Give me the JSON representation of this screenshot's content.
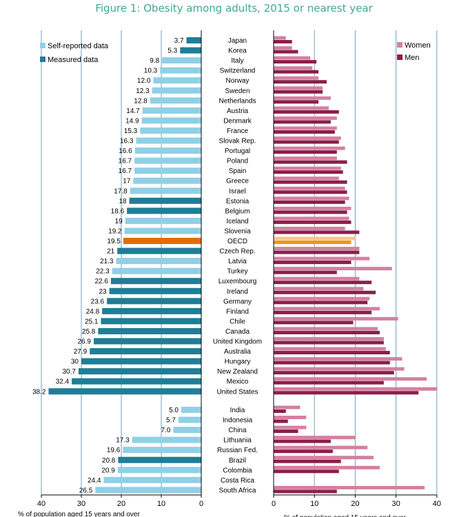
{
  "chart_data": {
    "type": "bar",
    "title": "Figure 1: Obesity among adults, 2015 or nearest year",
    "colors": {
      "self_reported": "#8fd0e6",
      "measured": "#1f7e96",
      "oecd_total": "#e36c0a",
      "women": "#d4809e",
      "men": "#8b1e4a",
      "oecd_women": "#f2c98e",
      "oecd_men": "#f0950f"
    },
    "left_panel": {
      "xlabel": "% of population aged 15 years and over",
      "xlim": [
        40,
        0
      ],
      "ticks": [
        40,
        30,
        20,
        10,
        0
      ],
      "legend": [
        {
          "name": "Self-reported data",
          "color_key": "self_reported"
        },
        {
          "name": "Measured data",
          "color_key": "measured"
        }
      ]
    },
    "right_panel": {
      "xlabel": "% of population aged 15 years and over",
      "xlim": [
        0,
        40
      ],
      "ticks": [
        0,
        10,
        20,
        30,
        40
      ],
      "legend": [
        {
          "name": "Women",
          "color_key": "women"
        },
        {
          "name": "Men",
          "color_key": "men"
        }
      ]
    },
    "groups": [
      {
        "countries": [
          {
            "name": "Japan",
            "total": "3.7",
            "type": "measured",
            "women": 3.0,
            "men": 4.5
          },
          {
            "name": "Korea",
            "total": "5.3",
            "type": "measured",
            "women": 4.5,
            "men": 6.0
          },
          {
            "name": "Italy",
            "total": "9.8",
            "type": "self",
            "women": 9.0,
            "men": 10.5
          },
          {
            "name": "Switzerland",
            "total": "10.3",
            "type": "self",
            "women": 9.5,
            "men": 11.0
          },
          {
            "name": "Norway",
            "total": "12.0",
            "type": "self",
            "women": 11.0,
            "men": 13.0
          },
          {
            "name": "Sweden",
            "total": "12.3",
            "type": "self",
            "women": 12.0,
            "men": 12.0
          },
          {
            "name": "Netherlands",
            "total": "12.8",
            "type": "self",
            "women": 14.0,
            "men": 11.0
          },
          {
            "name": "Austria",
            "total": "14.7",
            "type": "self",
            "women": 13.5,
            "men": 16.0
          },
          {
            "name": "Denmark",
            "total": "14.9",
            "type": "self",
            "women": 15.5,
            "men": 14.0
          },
          {
            "name": "France",
            "total": "15.3",
            "type": "self",
            "women": 15.5,
            "men": 15.0
          },
          {
            "name": "Slovak Rep.",
            "total": "16.3",
            "type": "self",
            "women": 16.5,
            "men": 16.0
          },
          {
            "name": "Portugal",
            "total": "16.6",
            "type": "self",
            "women": 17.5,
            "men": 15.5
          },
          {
            "name": "Poland",
            "total": "16.7",
            "type": "self",
            "women": 15.5,
            "men": 18.0
          },
          {
            "name": "Spain",
            "total": "16.7",
            "type": "self",
            "women": 16.5,
            "men": 17.0
          },
          {
            "name": "Greece",
            "total": "17",
            "type": "self",
            "women": 16.0,
            "men": 18.0
          },
          {
            "name": "Israel",
            "total": "17.8",
            "type": "self",
            "women": 17.5,
            "men": 18.0
          },
          {
            "name": "Estonia",
            "total": "18",
            "type": "measured",
            "women": 18.5,
            "men": 17.5
          },
          {
            "name": "Belgium",
            "total": "18.6",
            "type": "measured",
            "women": 19.0,
            "men": 18.0
          },
          {
            "name": "Iceland",
            "total": "19",
            "type": "self",
            "women": 18.5,
            "men": 19.0
          },
          {
            "name": "Slovenia",
            "total": "19.2",
            "type": "self",
            "women": 17.5,
            "men": 21.0
          },
          {
            "name": "OECD",
            "total": "19.5",
            "type": "oecd",
            "women": 20.0,
            "men": 19.0
          },
          {
            "name": "Czech Rep.",
            "total": "21",
            "type": "measured",
            "women": 21.0,
            "men": 21.0
          },
          {
            "name": "Latvia",
            "total": "21.3",
            "type": "self",
            "women": 23.5,
            "men": 19.0
          },
          {
            "name": "Turkey",
            "total": "22.3",
            "type": "self",
            "women": 29.0,
            "men": 15.5
          },
          {
            "name": "Luxembourg",
            "total": "22.6",
            "type": "measured",
            "women": 21.0,
            "men": 24.0
          },
          {
            "name": "Ireland",
            "total": "23",
            "type": "measured",
            "women": 22.0,
            "men": 25.0
          },
          {
            "name": "Germany",
            "total": "23.6",
            "type": "measured",
            "women": 23.5,
            "men": 23.0
          },
          {
            "name": "Finland",
            "total": "24.8",
            "type": "measured",
            "women": 26.0,
            "men": 24.0
          },
          {
            "name": "Chile",
            "total": "25.1",
            "type": "measured",
            "women": 30.5,
            "men": 19.5
          },
          {
            "name": "Canada",
            "total": "25.8",
            "type": "measured",
            "women": 25.5,
            "men": 26.0
          },
          {
            "name": "United Kingdom",
            "total": "26.9",
            "type": "measured",
            "women": 27.0,
            "men": 27.0
          },
          {
            "name": "Australia",
            "total": "27.9",
            "type": "measured",
            "women": 27.5,
            "men": 28.5
          },
          {
            "name": "Hungary",
            "total": "30",
            "type": "measured",
            "women": 31.5,
            "men": 28.5
          },
          {
            "name": "New Zealand",
            "total": "30.7",
            "type": "measured",
            "women": 32.0,
            "men": 29.5
          },
          {
            "name": "Mexico",
            "total": "32.4",
            "type": "measured",
            "women": 37.5,
            "men": 27.0
          },
          {
            "name": "United States",
            "total": "38.2",
            "type": "measured",
            "women": 40.0,
            "men": 35.5
          }
        ]
      },
      {
        "countries": [
          {
            "name": "India",
            "total": "5.0",
            "type": "self",
            "women": 6.5,
            "men": 3.0
          },
          {
            "name": "Indonesia",
            "total": "5.7",
            "type": "self",
            "women": 8.0,
            "men": 3.5
          },
          {
            "name": "China",
            "total": "7.0",
            "type": "self",
            "women": 8.0,
            "men": 6.0
          },
          {
            "name": "Lithuania",
            "total": "17.3",
            "type": "self",
            "women": 20.0,
            "men": 14.0
          },
          {
            "name": "Russian Fed.",
            "total": "19.6",
            "type": "self",
            "women": 23.0,
            "men": 14.5
          },
          {
            "name": "Brazil",
            "total": "20.8",
            "type": "measured",
            "women": 24.5,
            "men": 16.5
          },
          {
            "name": "Colombia",
            "total": "20.9",
            "type": "self",
            "women": 26.0,
            "men": 16.0
          },
          {
            "name": "Costa Rica",
            "total": "24.4",
            "type": "self",
            "women": null,
            "men": null
          },
          {
            "name": "South Africa",
            "total": "26.5",
            "type": "self",
            "women": 37.0,
            "men": 15.5
          }
        ]
      }
    ]
  }
}
